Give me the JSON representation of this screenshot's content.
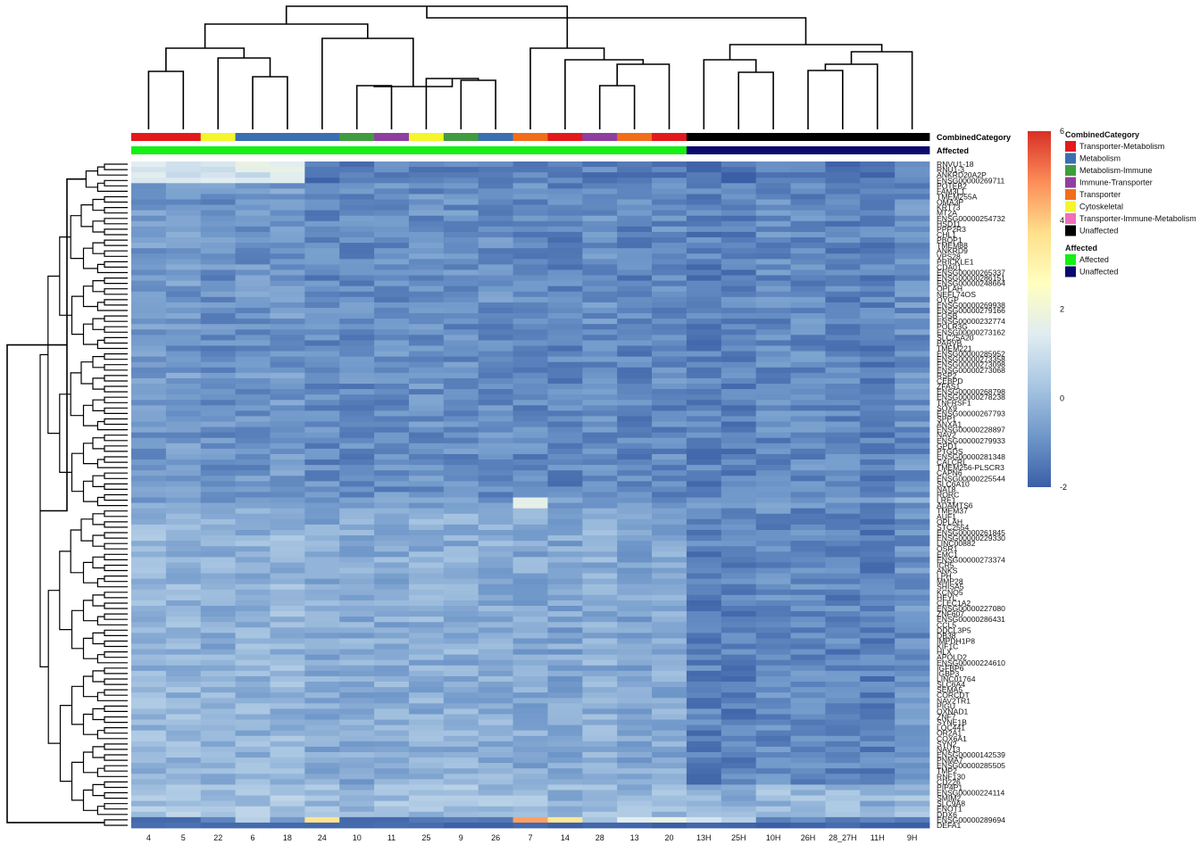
{
  "chart_data": {
    "type": "heatmap",
    "title": "",
    "columns": [
      "4",
      "5",
      "22",
      "6",
      "18",
      "24",
      "10",
      "11",
      "25",
      "9",
      "26",
      "7",
      "14",
      "28",
      "13",
      "20",
      "13H",
      "25H",
      "10H",
      "26H",
      "28_27H",
      "11H",
      "9H"
    ],
    "annotation_rows": [
      {
        "name": "CombinedCategory",
        "values": [
          "Transporter-Metabolism",
          "Transporter-Metabolism",
          "Cytoskeletal",
          "Metabolism",
          "Metabolism",
          "Metabolism",
          "Metabolism-Immune",
          "Immune-Transporter",
          "Cytoskeletal",
          "Metabolism-Immune",
          "Metabolism",
          "Transporter",
          "Transporter-Metabolism",
          "Immune-Transporter",
          "Transporter",
          "Transporter-Metabolism",
          "Unaffected",
          "Unaffected",
          "Unaffected",
          "Unaffected",
          "Unaffected",
          "Unaffected",
          "Unaffected"
        ]
      },
      {
        "name": "Affected",
        "values": [
          "Affected",
          "Affected",
          "Affected",
          "Affected",
          "Affected",
          "Affected",
          "Affected",
          "Affected",
          "Affected",
          "Affected",
          "Affected",
          "Affected",
          "Affected",
          "Affected",
          "Affected",
          "Affected",
          "Unaffected",
          "Unaffected",
          "Unaffected",
          "Unaffected",
          "Unaffected",
          "Unaffected",
          "Unaffected"
        ]
      }
    ],
    "legends": [
      {
        "title": "CombinedCategory",
        "items": [
          {
            "label": "Transporter-Metabolism",
            "color": "#e31a1c"
          },
          {
            "label": "Metabolism",
            "color": "#3a6fb0"
          },
          {
            "label": "Metabolism-Immune",
            "color": "#3f9c3f"
          },
          {
            "label": "Immune-Transporter",
            "color": "#8e3fa0"
          },
          {
            "label": "Transporter",
            "color": "#f26d1a"
          },
          {
            "label": "Cytoskeletal",
            "color": "#f5f52c"
          },
          {
            "label": "Transporter-Immune-Metabolism",
            "color": "#f06fb8"
          },
          {
            "label": "Unaffected",
            "color": "#000000"
          }
        ]
      },
      {
        "title": "Affected",
        "items": [
          {
            "label": "Affected",
            "color": "#14f014"
          },
          {
            "label": "Unaffected",
            "color": "#0a0a6e"
          }
        ]
      }
    ],
    "color_scale": {
      "min": -2,
      "max": 6,
      "ticks": [
        "6",
        "4",
        "2",
        "0",
        "-2"
      ],
      "colors": [
        "#3b5fa6",
        "#6f97c9",
        "#a9c6e2",
        "#e0ecf2",
        "#ffffc0",
        "#fee08b",
        "#fc8d59",
        "#d73027"
      ]
    },
    "rows": [
      "RNVU1-18",
      "RNU1-3",
      "ANKRD20A2P",
      "ENSG00000269711",
      "POTEB2",
      "FAM3L1",
      "TMEM255A",
      "OMA3P",
      "KRT73",
      "MT2A",
      "ENSG00000254732",
      "HSD11",
      "PPP2R3",
      "CHL1",
      "PBOP1",
      "TMEM88",
      "ANKRD9",
      "VPS28",
      "PRICKLE1",
      "CDA01",
      "ENSG00000265337",
      "ENSG00000286151",
      "ENSG00000248664",
      "OPLAH",
      "NEFL74OS",
      "OYGP",
      "ENSG00000269938",
      "ENSG00000279166",
      "FOSB",
      "ENSG00000232774",
      "POLR3G",
      "ENSG00000273162",
      "SLC25A20",
      "PARVB",
      "TMEM221",
      "ENSG00000285952",
      "ENSG00000273358",
      "ENSG00000273098",
      "ENSG00000273068",
      "RSP2",
      "CEBPD",
      "ZFAS1",
      "ENSG00000268798",
      "ENSG00000278238",
      "TNFRSF1",
      "SOX9",
      "ENSG00000267793",
      "SPP1",
      "ANXA1",
      "ENSG00000228897",
      "NAV2",
      "ENSG00000279933",
      "GPD1",
      "PTGDS",
      "ENSG00000281348",
      "CALCRL",
      "TMEM256-PLSCR3",
      "CAPN6",
      "ENSG00000225544",
      "SLC6A10",
      "NAT8",
      "RORC",
      "LRE1",
      "ADAMTS6",
      "TMEM37",
      "AUF1",
      "OPLAH",
      "STC2554",
      "ENSG00000261845",
      "ENSG00000229330",
      "LINC00882",
      "OSR1",
      "EMC1",
      "ENSG00000273374",
      "ICR5",
      "ANKS",
      "LPH",
      "MMP28",
      "SHISA5",
      "KCNQ5",
      "HEYL",
      "CLEC1A2",
      "ENSG00000227080",
      "ZNF607",
      "ENSG00000286431",
      "CCL5",
      "DDCL3P5",
      "DB38",
      "IMPDH1P8",
      "KIF1C",
      "HLX",
      "APOLD2",
      "ENSG00000224610",
      "IGFBP6",
      "IGBP3",
      "LINC01764",
      "SLC6A4",
      "SEMA5",
      "CORCDT",
      "NAV2TR1",
      "PIGU",
      "OXNAD1",
      "ZNF7",
      "SYNE1B",
      "LOC441",
      "OR2A1",
      "COX6A1",
      "SYN2",
      "NAV13",
      "ENSG00000142539",
      "PNMA7",
      "ENSG00000285505",
      "TMP2",
      "RNF130",
      "CD226",
      "PIP4P1",
      "ENSG00000224114",
      "SMIM2",
      "SLC9A8",
      "ENOT1",
      "DDX6",
      "ENSG00000289694",
      "DEFA1"
    ],
    "row_dendrogram": "hierarchical clustering (left)",
    "column_dendrogram": "hierarchical clustering (top)"
  }
}
